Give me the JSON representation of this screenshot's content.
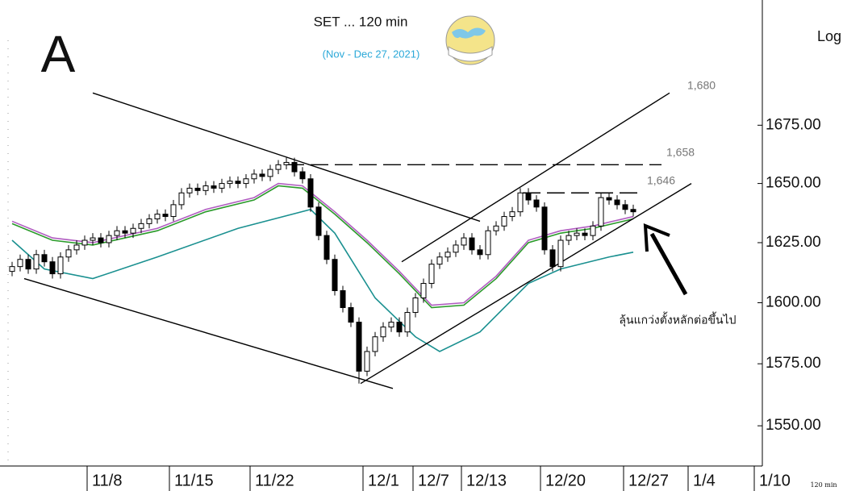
{
  "chart_data": {
    "type": "candlestick",
    "title": "SET ... 120 min",
    "subtitle": "(Nov - Dec 27, 2021)",
    "panel_label": "A",
    "scale_label": "Log",
    "interval_label": "120 min",
    "log_scale": true,
    "grid": false,
    "ylim": [
      1534,
      1730
    ],
    "yticks": [
      {
        "value": 1550,
        "label": "1550.00"
      },
      {
        "value": 1575,
        "label": "1575.00"
      },
      {
        "value": 1600,
        "label": "1600.00"
      },
      {
        "value": 1625,
        "label": "1625.00"
      },
      {
        "value": 1650,
        "label": "1650.00"
      },
      {
        "value": 1675,
        "label": "1675.00"
      }
    ],
    "xlim": [
      -1.5,
      93
    ],
    "xticks": [
      {
        "value": 9.3,
        "label": "11/8"
      },
      {
        "value": 19.5,
        "label": "11/15"
      },
      {
        "value": 29.5,
        "label": "11/22"
      },
      {
        "value": 43.5,
        "label": "12/1"
      },
      {
        "value": 49.7,
        "label": "12/7"
      },
      {
        "value": 55.7,
        "label": "12/13"
      },
      {
        "value": 65.5,
        "label": "12/20"
      },
      {
        "value": 75.8,
        "label": "12/27"
      },
      {
        "value": 83.8,
        "label": "1/4"
      },
      {
        "value": 92,
        "label": "1/10"
      }
    ],
    "up_color": "#ffffff",
    "down_color": "#000000",
    "open": [
      1613,
      1615,
      1618,
      1614,
      1620,
      1617,
      1612,
      1619,
      1622,
      1624,
      1626,
      1627,
      1625,
      1628,
      1630,
      1629,
      1631,
      1633,
      1635,
      1637,
      1636,
      1641,
      1646,
      1648,
      1647,
      1649,
      1648,
      1650,
      1651,
      1650,
      1652,
      1654,
      1653,
      1656,
      1658,
      1659,
      1655,
      1652,
      1640,
      1628,
      1618,
      1605,
      1598,
      1592,
      1572,
      1580,
      1586,
      1590,
      1592,
      1588,
      1596,
      1602,
      1608,
      1616,
      1619,
      1621,
      1624,
      1627,
      1622,
      1620,
      1630,
      1632,
      1636,
      1638,
      1646,
      1643,
      1640,
      1622,
      1615,
      1626,
      1628,
      1629,
      1628,
      1632,
      1644,
      1643,
      1641,
      1639
    ],
    "high": [
      1617,
      1620,
      1620,
      1622,
      1622,
      1619,
      1621,
      1624,
      1626,
      1628,
      1629,
      1629,
      1630,
      1632,
      1632,
      1633,
      1635,
      1637,
      1639,
      1639,
      1643,
      1648,
      1650,
      1650,
      1651,
      1651,
      1652,
      1653,
      1653,
      1654,
      1656,
      1656,
      1658,
      1660,
      1661,
      1661,
      1657,
      1654,
      1642,
      1630,
      1620,
      1607,
      1600,
      1594,
      1582,
      1588,
      1592,
      1594,
      1594,
      1598,
      1604,
      1610,
      1618,
      1621,
      1623,
      1626,
      1629,
      1629,
      1624,
      1632,
      1634,
      1638,
      1640,
      1648,
      1648,
      1645,
      1642,
      1624,
      1628,
      1630,
      1631,
      1631,
      1634,
      1646,
      1646,
      1645,
      1643,
      1641
    ],
    "low": [
      1611,
      1613,
      1612,
      1612,
      1615,
      1610,
      1610,
      1617,
      1620,
      1622,
      1624,
      1623,
      1623,
      1626,
      1627,
      1627,
      1629,
      1631,
      1633,
      1634,
      1634,
      1639,
      1644,
      1645,
      1645,
      1646,
      1646,
      1648,
      1648,
      1648,
      1650,
      1651,
      1651,
      1654,
      1656,
      1653,
      1650,
      1638,
      1626,
      1616,
      1603,
      1596,
      1590,
      1567,
      1570,
      1578,
      1584,
      1588,
      1586,
      1586,
      1594,
      1600,
      1606,
      1614,
      1617,
      1619,
      1622,
      1620,
      1618,
      1618,
      1628,
      1630,
      1634,
      1636,
      1641,
      1638,
      1620,
      1613,
      1613,
      1624,
      1626,
      1626,
      1626,
      1630,
      1641,
      1639,
      1637,
      1636
    ],
    "close": [
      1615,
      1618,
      1614,
      1620,
      1617,
      1612,
      1619,
      1622,
      1624,
      1626,
      1627,
      1625,
      1628,
      1630,
      1629,
      1631,
      1633,
      1635,
      1637,
      1636,
      1641,
      1646,
      1648,
      1647,
      1649,
      1648,
      1650,
      1651,
      1650,
      1652,
      1654,
      1653,
      1656,
      1658,
      1659,
      1655,
      1652,
      1640,
      1628,
      1618,
      1605,
      1598,
      1592,
      1572,
      1580,
      1586,
      1590,
      1592,
      1588,
      1596,
      1602,
      1608,
      1616,
      1619,
      1621,
      1624,
      1627,
      1622,
      1620,
      1630,
      1632,
      1636,
      1638,
      1646,
      1643,
      1640,
      1622,
      1615,
      1626,
      1628,
      1629,
      1628,
      1632,
      1644,
      1643,
      1641,
      1639,
      1638
    ],
    "averages": [
      {
        "color": "#b05cc0",
        "x": [
          0,
          5,
          10,
          18,
          24,
          30,
          33,
          36,
          40,
          44,
          48,
          52,
          56,
          60,
          64,
          68,
          72,
          77
        ],
        "values": [
          1634,
          1627,
          1625,
          1631,
          1639,
          1644,
          1650,
          1649,
          1638,
          1626,
          1613,
          1599,
          1600,
          1611,
          1626,
          1630,
          1632,
          1636
        ]
      },
      {
        "color": "#2a9a2a",
        "x": [
          0,
          5,
          10,
          18,
          24,
          30,
          33,
          36,
          40,
          44,
          48,
          52,
          56,
          60,
          64,
          68,
          72,
          77
        ],
        "values": [
          1633,
          1626,
          1624,
          1630,
          1638,
          1643,
          1649,
          1648,
          1637,
          1625,
          1612,
          1598,
          1599,
          1610,
          1625,
          1629,
          1631,
          1635
        ]
      },
      {
        "color": "#1a9090",
        "x": [
          0,
          4,
          10,
          18,
          28,
          37,
          40,
          45,
          50,
          53,
          58,
          64,
          68,
          74,
          77
        ],
        "values": [
          1626,
          1614,
          1610,
          1619,
          1631,
          1639,
          1629,
          1602,
          1586,
          1580,
          1588,
          1608,
          1614,
          1619,
          1621
        ]
      }
    ],
    "trendlines": [
      {
        "x": [
          10,
          58
        ],
        "y": [
          1689,
          1634
        ],
        "dashed": false
      },
      {
        "x": [
          1.5,
          47.2
        ],
        "y": [
          1610,
          1565
        ],
        "dashed": false
      },
      {
        "x": [
          48.3,
          81.5
        ],
        "y": [
          1617,
          1689
        ],
        "dashed": false
      },
      {
        "x": [
          43.2,
          84.2
        ],
        "y": [
          1567,
          1650
        ],
        "dashed": false
      },
      {
        "x": [
          34,
          80.5
        ],
        "y": [
          1658,
          1658
        ],
        "dashed": true
      },
      {
        "x": [
          63.3,
          77.5
        ],
        "y": [
          1646,
          1646
        ],
        "dashed": true
      }
    ],
    "level_labels": [
      "1,680",
      "1,658",
      "1,646"
    ],
    "annotation": "ลุ้นแกว่งตั้งหลักต่อขึ้นไป"
  }
}
